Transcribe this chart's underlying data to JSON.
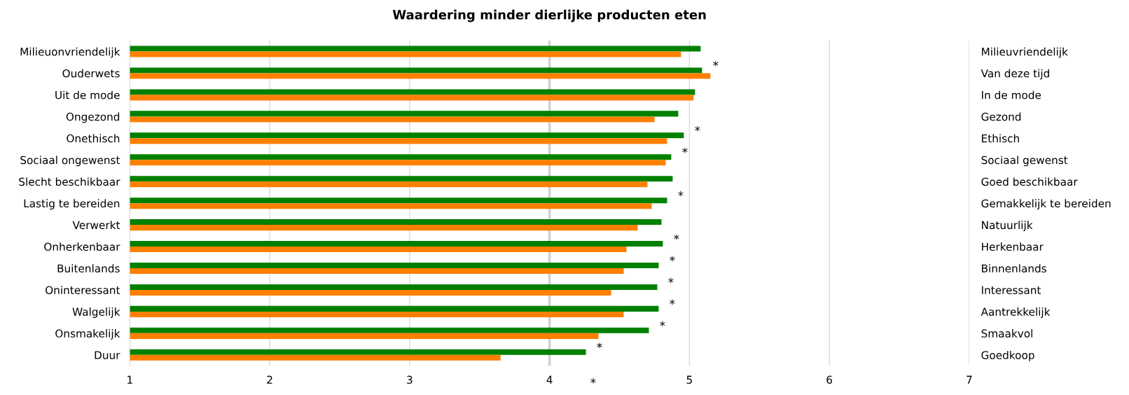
{
  "chart_data": {
    "type": "bar",
    "orientation": "horizontal",
    "title": "Waardering minder dierlijke producten eten",
    "categories": [
      "Milieuonvriendelijk",
      "Ouderwets",
      "Uit de mode",
      "Ongezond",
      "Onethisch",
      "Sociaal ongewenst",
      "Slecht beschikbaar",
      "Lastig te bereiden",
      "Verwerkt",
      "Onherkenbaar",
      "Buitenlands",
      "Oninteressant",
      "Walgelijk",
      "Onsmakelijk",
      "Duur"
    ],
    "y2_categories": [
      "Milieuvriendelijk",
      "Van deze tijd",
      "In de mode",
      "Gezond",
      "Ethisch",
      "Sociaal gewenst",
      "Goed beschikbaar",
      "Gemakkelijk te bereiden",
      "Natuurlijk",
      "Herkenbaar",
      "Binnenlands",
      "Interessant",
      "Aantrekkelijk",
      "Smaakvol",
      "Goedkoop"
    ],
    "series": [
      {
        "color": "#008000",
        "values": [
          5.08,
          5.09,
          5.04,
          4.92,
          4.96,
          4.87,
          4.88,
          4.84,
          4.8,
          4.81,
          4.78,
          4.77,
          4.78,
          4.71,
          4.26
        ],
        "value_labels": [
          null,
          "*",
          null,
          null,
          "*",
          "*",
          null,
          "*",
          null,
          "*",
          "*",
          "*",
          "*",
          "*",
          "*"
        ]
      },
      {
        "color": "#ff7f00",
        "values": [
          4.94,
          5.15,
          5.03,
          4.75,
          4.84,
          4.83,
          4.7,
          4.73,
          4.63,
          4.55,
          4.53,
          4.44,
          4.53,
          4.35,
          3.65
        ]
      }
    ],
    "xlim": [
      1,
      7
    ],
    "xticks": [
      1,
      2,
      3,
      4,
      5,
      6,
      7
    ],
    "grid": "x",
    "ref_lines": [
      {
        "axis": "x",
        "value": 4,
        "color": "#c8c8c8"
      }
    ],
    "annotations": [
      "*"
    ]
  }
}
